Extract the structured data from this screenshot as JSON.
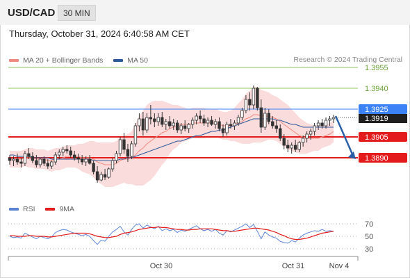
{
  "header": {
    "symbol": "USD/CAD",
    "interval": "30 MIN"
  },
  "datetime": "Thursday, October 31, 2024 6:40:58 AM CET",
  "legend": [
    {
      "label": "MA 20 + Bollinger Bands",
      "color": "#f08a80"
    },
    {
      "label": "MA 50",
      "color": "#2e5a9c"
    }
  ],
  "credit": "Research © 2024 Trading Central",
  "levels": [
    {
      "value": 1.3955,
      "label": "1.3955",
      "color": "#8fc65a",
      "style": "green"
    },
    {
      "value": 1.394,
      "label": "1.3940",
      "color": "#8fc65a",
      "style": "green"
    },
    {
      "value": 1.3925,
      "label": "1.3925",
      "color": "#3b82f6",
      "style": "pivot"
    },
    {
      "value": 1.3905,
      "label": "1.3905",
      "color": "#e41b1b",
      "style": "red"
    },
    {
      "value": 1.389,
      "label": "1.3890",
      "color": "#e41b1b",
      "style": "red"
    }
  ],
  "last_price": "1.3919",
  "rsi_legend": [
    {
      "label": "RSI",
      "color": "#5b84d6"
    },
    {
      "label": "9MA",
      "color": "#e41b1b"
    }
  ],
  "rsi_levels": [
    "70",
    "50",
    "30"
  ],
  "x_labels": [
    "Oct 30",
    "Oct 31",
    "Nov 4"
  ],
  "colors": {
    "candle": "#333333",
    "band_fill": "#fbdcdc",
    "ma20": "#f08a80",
    "ma50": "#2e5a9c",
    "arrow": "#2a5fa8"
  },
  "chart_data": {
    "type": "candlestick",
    "ohlc": [
      [
        1.389,
        1.3892,
        1.3885,
        1.3888
      ],
      [
        1.3888,
        1.3891,
        1.3884,
        1.3889
      ],
      [
        1.3889,
        1.3893,
        1.3885,
        1.3887
      ],
      [
        1.3887,
        1.389,
        1.3883,
        1.3886
      ],
      [
        1.3886,
        1.3895,
        1.3884,
        1.3893
      ],
      [
        1.3893,
        1.3897,
        1.3889,
        1.3891
      ],
      [
        1.3891,
        1.3894,
        1.3886,
        1.3888
      ],
      [
        1.3888,
        1.3892,
        1.3883,
        1.3885
      ],
      [
        1.3885,
        1.389,
        1.3883,
        1.3889
      ],
      [
        1.3889,
        1.3891,
        1.3884,
        1.3886
      ],
      [
        1.3886,
        1.3889,
        1.3882,
        1.3884
      ],
      [
        1.3884,
        1.3888,
        1.3882,
        1.3887
      ],
      [
        1.3887,
        1.3894,
        1.3885,
        1.3892
      ],
      [
        1.3892,
        1.3896,
        1.3889,
        1.3894
      ],
      [
        1.3894,
        1.3898,
        1.3891,
        1.3896
      ],
      [
        1.3896,
        1.3899,
        1.3893,
        1.3895
      ],
      [
        1.3895,
        1.3898,
        1.389,
        1.3892
      ],
      [
        1.3892,
        1.3895,
        1.3888,
        1.389
      ],
      [
        1.389,
        1.3893,
        1.3886,
        1.3889
      ],
      [
        1.3889,
        1.3892,
        1.3885,
        1.3887
      ],
      [
        1.3887,
        1.3891,
        1.3884,
        1.3889
      ],
      [
        1.3889,
        1.3892,
        1.3885,
        1.3886
      ],
      [
        1.3886,
        1.3888,
        1.3878,
        1.388
      ],
      [
        1.388,
        1.3884,
        1.3872,
        1.3874
      ],
      [
        1.3874,
        1.388,
        1.3873,
        1.3878
      ],
      [
        1.3878,
        1.3882,
        1.3874,
        1.3876
      ],
      [
        1.3876,
        1.3883,
        1.3875,
        1.3882
      ],
      [
        1.3882,
        1.389,
        1.388,
        1.3888
      ],
      [
        1.3888,
        1.3895,
        1.3886,
        1.3893
      ],
      [
        1.3893,
        1.3905,
        1.3891,
        1.3903
      ],
      [
        1.3903,
        1.3908,
        1.3893,
        1.3896
      ],
      [
        1.3896,
        1.39,
        1.3887,
        1.3891
      ],
      [
        1.3891,
        1.3902,
        1.3889,
        1.39
      ],
      [
        1.39,
        1.3915,
        1.3898,
        1.3913
      ],
      [
        1.3913,
        1.3922,
        1.3909,
        1.3918
      ],
      [
        1.3918,
        1.3923,
        1.3906,
        1.391
      ],
      [
        1.391,
        1.3922,
        1.3908,
        1.3919
      ],
      [
        1.3919,
        1.3928,
        1.3914,
        1.3918
      ],
      [
        1.3918,
        1.3922,
        1.3912,
        1.3916
      ],
      [
        1.3916,
        1.3922,
        1.3913,
        1.3919
      ],
      [
        1.3919,
        1.3923,
        1.3912,
        1.3914
      ],
      [
        1.3914,
        1.3918,
        1.391,
        1.3916
      ],
      [
        1.3916,
        1.392,
        1.3911,
        1.3913
      ],
      [
        1.3913,
        1.3918,
        1.391,
        1.3915
      ],
      [
        1.3915,
        1.3917,
        1.3908,
        1.391
      ],
      [
        1.391,
        1.3915,
        1.3907,
        1.3913
      ],
      [
        1.3913,
        1.3917,
        1.3909,
        1.3911
      ],
      [
        1.3911,
        1.3915,
        1.3908,
        1.3914
      ],
      [
        1.3914,
        1.3919,
        1.3911,
        1.3917
      ],
      [
        1.3917,
        1.3922,
        1.3914,
        1.392
      ],
      [
        1.392,
        1.3924,
        1.3915,
        1.3918
      ],
      [
        1.3918,
        1.3921,
        1.3913,
        1.3915
      ],
      [
        1.3915,
        1.3919,
        1.3912,
        1.3917
      ],
      [
        1.3917,
        1.392,
        1.3913,
        1.3914
      ],
      [
        1.3914,
        1.3918,
        1.3911,
        1.3916
      ],
      [
        1.3916,
        1.3919,
        1.3909,
        1.3911
      ],
      [
        1.3911,
        1.3914,
        1.3905,
        1.3908
      ],
      [
        1.3908,
        1.3916,
        1.3906,
        1.3914
      ],
      [
        1.3914,
        1.3918,
        1.3911,
        1.3913
      ],
      [
        1.3913,
        1.3917,
        1.391,
        1.3915
      ],
      [
        1.3915,
        1.3921,
        1.3913,
        1.3919
      ],
      [
        1.3919,
        1.3926,
        1.3917,
        1.3924
      ],
      [
        1.3924,
        1.3935,
        1.3922,
        1.3932
      ],
      [
        1.3932,
        1.3937,
        1.3924,
        1.3928
      ],
      [
        1.3928,
        1.3942,
        1.3925,
        1.394
      ],
      [
        1.394,
        1.3941,
        1.3924,
        1.3926
      ],
      [
        1.3926,
        1.3932,
        1.3908,
        1.3912
      ],
      [
        1.3912,
        1.3926,
        1.391,
        1.3922
      ],
      [
        1.3922,
        1.3925,
        1.3914,
        1.3916
      ],
      [
        1.3916,
        1.392,
        1.3911,
        1.3913
      ],
      [
        1.3913,
        1.3917,
        1.3908,
        1.3911
      ],
      [
        1.3911,
        1.3914,
        1.3902,
        1.3904
      ],
      [
        1.3904,
        1.3907,
        1.3896,
        1.3899
      ],
      [
        1.3899,
        1.3903,
        1.3894,
        1.3897
      ],
      [
        1.3897,
        1.3901,
        1.3893,
        1.3899
      ],
      [
        1.3899,
        1.3903,
        1.3894,
        1.3896
      ],
      [
        1.3896,
        1.3902,
        1.3894,
        1.3901
      ],
      [
        1.3901,
        1.3906,
        1.3898,
        1.3904
      ],
      [
        1.3904,
        1.3909,
        1.3901,
        1.3907
      ],
      [
        1.3907,
        1.3911,
        1.3903,
        1.3909
      ],
      [
        1.3909,
        1.3915,
        1.3906,
        1.3913
      ],
      [
        1.3913,
        1.3917,
        1.391,
        1.3915
      ],
      [
        1.3915,
        1.3918,
        1.3911,
        1.3913
      ],
      [
        1.3913,
        1.3919,
        1.3911,
        1.3917
      ],
      [
        1.3917,
        1.392,
        1.3913,
        1.3918
      ],
      [
        1.3918,
        1.3921,
        1.3915,
        1.3919
      ]
    ],
    "ma20": [
      1.3889,
      1.3889,
      1.3889,
      1.3889,
      1.389,
      1.389,
      1.389,
      1.3889,
      1.3889,
      1.3889,
      1.3888,
      1.3888,
      1.3889,
      1.3889,
      1.389,
      1.3891,
      1.3891,
      1.3891,
      1.3891,
      1.389,
      1.389,
      1.389,
      1.3889,
      1.3887,
      1.3886,
      1.3885,
      1.3885,
      1.3885,
      1.3886,
      1.3888,
      1.3889,
      1.3889,
      1.389,
      1.3892,
      1.3895,
      1.3897,
      1.39,
      1.3902,
      1.3904,
      1.3906,
      1.3908,
      1.3909,
      1.3911,
      1.3912,
      1.3913,
      1.3914,
      1.3914,
      1.3914,
      1.3915,
      1.3915,
      1.3915,
      1.3915,
      1.3915,
      1.3915,
      1.3915,
      1.3914,
      1.3913,
      1.3913,
      1.3913,
      1.3914,
      1.3915,
      1.3916,
      1.3918,
      1.3919,
      1.3921,
      1.3921,
      1.392,
      1.392,
      1.392,
      1.3919,
      1.3918,
      1.3916,
      1.3914,
      1.3912,
      1.391,
      1.3908,
      1.3906,
      1.3905,
      1.3904,
      1.3904,
      1.3904,
      1.3904,
      1.3905,
      1.3906,
      1.3907,
      1.3909
    ],
    "ma50": [
      1.3892,
      1.3892,
      1.3891,
      1.3891,
      1.3891,
      1.3891,
      1.389,
      1.389,
      1.389,
      1.389,
      1.389,
      1.3889,
      1.3889,
      1.3889,
      1.3889,
      1.3889,
      1.3889,
      1.3889,
      1.3889,
      1.3889,
      1.3889,
      1.3889,
      1.3888,
      1.3888,
      1.3888,
      1.3888,
      1.3888,
      1.3888,
      1.3888,
      1.3889,
      1.3889,
      1.389,
      1.389,
      1.3891,
      1.3892,
      1.3893,
      1.3894,
      1.3895,
      1.3896,
      1.3897,
      1.3898,
      1.3899,
      1.39,
      1.3901,
      1.3902,
      1.3902,
      1.3903,
      1.3904,
      1.3905,
      1.3906,
      1.3906,
      1.3907,
      1.3908,
      1.3909,
      1.3909,
      1.391,
      1.391,
      1.3911,
      1.3912,
      1.3913,
      1.3914,
      1.3915,
      1.3916,
      1.3917,
      1.3918,
      1.3918,
      1.3918,
      1.3918,
      1.3918,
      1.3918,
      1.3917,
      1.3917,
      1.3916,
      1.3915,
      1.3914,
      1.3914,
      1.3913,
      1.3912,
      1.3912,
      1.3912,
      1.3912,
      1.3912,
      1.3912,
      1.3912,
      1.3912,
      1.3912
    ],
    "band_width": [
      0.0006,
      0.0006,
      0.0006,
      0.0006,
      0.0006,
      0.0007,
      0.0007,
      0.0007,
      0.0007,
      0.0007,
      0.0007,
      0.0008,
      0.0008,
      0.0008,
      0.0008,
      0.0008,
      0.0008,
      0.0008,
      0.0009,
      0.001,
      0.0011,
      0.0012,
      0.0013,
      0.0014,
      0.0015,
      0.0016,
      0.0016,
      0.0016,
      0.0016,
      0.0017,
      0.0017,
      0.0018,
      0.0019,
      0.0022,
      0.0025,
      0.0027,
      0.0028,
      0.0028,
      0.0027,
      0.0025,
      0.0023,
      0.0021,
      0.0018,
      0.0016,
      0.0015,
      0.0013,
      0.0012,
      0.0011,
      0.0011,
      0.0011,
      0.0011,
      0.0011,
      0.001,
      0.001,
      0.001,
      0.001,
      0.001,
      0.001,
      0.0011,
      0.0012,
      0.0014,
      0.0016,
      0.0018,
      0.0019,
      0.002,
      0.002,
      0.0019,
      0.0018,
      0.0017,
      0.0016,
      0.0016,
      0.0016,
      0.0016,
      0.0016,
      0.0015,
      0.0014,
      0.0013,
      0.0012,
      0.0011,
      0.001,
      0.0009,
      0.0009,
      0.0008,
      0.0008,
      0.0008,
      0.0008
    ],
    "rsi": [
      50,
      48,
      49,
      47,
      55,
      52,
      49,
      46,
      50,
      48,
      46,
      49,
      56,
      59,
      61,
      60,
      57,
      55,
      53,
      51,
      53,
      50,
      43,
      37,
      44,
      42,
      50,
      57,
      61,
      66,
      57,
      52,
      61,
      68,
      70,
      63,
      68,
      65,
      62,
      66,
      59,
      62,
      59,
      61,
      56,
      60,
      58,
      61,
      64,
      67,
      62,
      59,
      61,
      58,
      61,
      55,
      52,
      59,
      57,
      60,
      63,
      66,
      70,
      64,
      69,
      58,
      46,
      57,
      52,
      49,
      47,
      42,
      40,
      39,
      43,
      41,
      47,
      52,
      55,
      57,
      59,
      58,
      61,
      58,
      59,
      58
    ],
    "rsi9": [
      51,
      51,
      50,
      50,
      50,
      51,
      51,
      50,
      50,
      50,
      49,
      49,
      50,
      51,
      52,
      53,
      54,
      55,
      55,
      55,
      55,
      54,
      52,
      50,
      49,
      48,
      48,
      49,
      50,
      53,
      55,
      56,
      57,
      59,
      61,
      62,
      63,
      64,
      64,
      65,
      64,
      64,
      63,
      62,
      61,
      61,
      60,
      60,
      61,
      61,
      62,
      62,
      62,
      62,
      61,
      60,
      59,
      59,
      58,
      58,
      59,
      60,
      61,
      62,
      63,
      63,
      62,
      61,
      60,
      58,
      56,
      53,
      51,
      48,
      46,
      45,
      45,
      46,
      47,
      49,
      51,
      53,
      55,
      56,
      57,
      58
    ],
    "y_range": [
      1.3868,
      1.3958
    ],
    "rsi_range": [
      20,
      80
    ]
  }
}
